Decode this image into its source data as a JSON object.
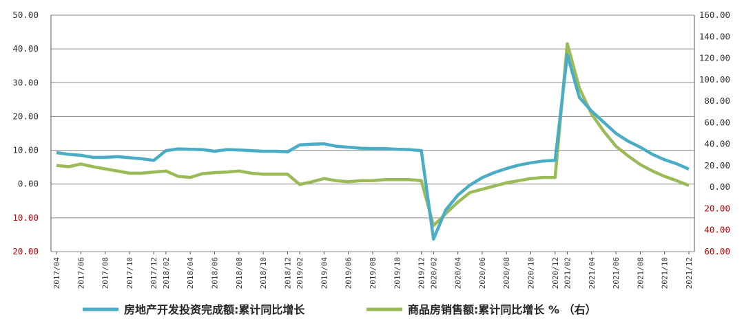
{
  "colors": {
    "series1": "#4BACC6",
    "series2": "#9BBB59",
    "left_axis": "#333333",
    "right_axis": "#333333",
    "right_axis_negative": "#c00000",
    "left_axis_negative": "#c00000",
    "grid": "#8a8a8a",
    "axis": "#555555"
  },
  "chart_data": {
    "type": "line",
    "grid": true,
    "legend_position": "bottom",
    "y_left": {
      "ticks": [
        "50.00",
        "40.00",
        "30.00",
        "20.00",
        "10.00",
        "0.00",
        "10.00",
        "20.00"
      ],
      "tick_values": [
        50,
        40,
        30,
        20,
        10,
        0,
        -10,
        -20
      ],
      "range": [
        -20,
        50
      ]
    },
    "y_right": {
      "ticks": [
        "160.00",
        "140.00",
        "120.00",
        "100.00",
        "80.00",
        "60.00",
        "40.00",
        "20.00",
        "0.00",
        "20.00",
        "40.00",
        "60.00"
      ],
      "tick_values": [
        160,
        140,
        120,
        100,
        80,
        60,
        40,
        20,
        0,
        -20,
        -40,
        -60
      ],
      "range": [
        -60,
        160
      ]
    },
    "x_tick_labels": [
      "2017/04",
      "2017/06",
      "2017/08",
      "2017/10",
      "2017/12",
      "2018/02",
      "2018/04",
      "2018/06",
      "2018/08",
      "2018/10",
      "2018/12",
      "2019/02",
      "2019/04",
      "2019/06",
      "2019/08",
      "2019/10",
      "2019/12",
      "2020/02",
      "2020/04",
      "2020/06",
      "2020/08",
      "2020/10",
      "2020/12",
      "2021/02",
      "2021/04",
      "2021/06",
      "2021/08",
      "2021/10",
      "2021/12"
    ],
    "x": [
      "2017/04",
      "2017/05",
      "2017/06",
      "2017/07",
      "2017/08",
      "2017/09",
      "2017/10",
      "2017/11",
      "2017/12",
      "2018/02",
      "2018/03",
      "2018/04",
      "2018/05",
      "2018/06",
      "2018/07",
      "2018/08",
      "2018/09",
      "2018/10",
      "2018/11",
      "2018/12",
      "2019/02",
      "2019/03",
      "2019/04",
      "2019/05",
      "2019/06",
      "2019/07",
      "2019/08",
      "2019/09",
      "2019/10",
      "2019/11",
      "2019/12",
      "2020/02",
      "2020/03",
      "2020/04",
      "2020/05",
      "2020/06",
      "2020/07",
      "2020/08",
      "2020/09",
      "2020/10",
      "2020/11",
      "2020/12",
      "2021/02",
      "2021/03",
      "2021/04",
      "2021/05",
      "2021/06",
      "2021/07",
      "2021/08",
      "2021/09",
      "2021/10",
      "2021/11",
      "2021/12"
    ],
    "series": [
      {
        "name": "房地产开发投资完成额:累计同比增长",
        "axis": "left",
        "values": [
          9.3,
          8.8,
          8.5,
          7.9,
          7.9,
          8.1,
          7.8,
          7.5,
          7.0,
          9.9,
          10.4,
          10.3,
          10.2,
          9.7,
          10.2,
          10.1,
          9.9,
          9.7,
          9.7,
          9.5,
          11.6,
          11.8,
          11.9,
          11.2,
          10.9,
          10.6,
          10.5,
          10.5,
          10.3,
          10.2,
          9.9,
          -16.3,
          -7.7,
          -3.3,
          -0.3,
          1.9,
          3.4,
          4.6,
          5.6,
          6.3,
          6.8,
          7.0,
          38.3,
          25.6,
          21.6,
          18.3,
          15.0,
          12.7,
          10.9,
          8.8,
          7.2,
          6.0,
          4.4
        ]
      },
      {
        "name": "商品房销售额:累计同比增长 % （右）",
        "axis": "right",
        "values": [
          20.2,
          19.0,
          21.5,
          19.0,
          17.0,
          15.0,
          13.0,
          13.0,
          14.0,
          15.0,
          10.0,
          9.0,
          12.5,
          13.5,
          14.0,
          15.0,
          13.0,
          12.0,
          12.0,
          12.0,
          2.5,
          5.0,
          8.0,
          6.0,
          5.0,
          6.0,
          6.0,
          7.0,
          7.0,
          7.0,
          6.0,
          -35.9,
          -24.7,
          -14.0,
          -5.0,
          -2.0,
          1.0,
          4.0,
          6.0,
          8.0,
          9.0,
          9.0,
          133.4,
          92.0,
          68.0,
          52.0,
          38.0,
          29.0,
          21.0,
          15.0,
          10.0,
          6.0,
          1.5
        ]
      }
    ]
  }
}
